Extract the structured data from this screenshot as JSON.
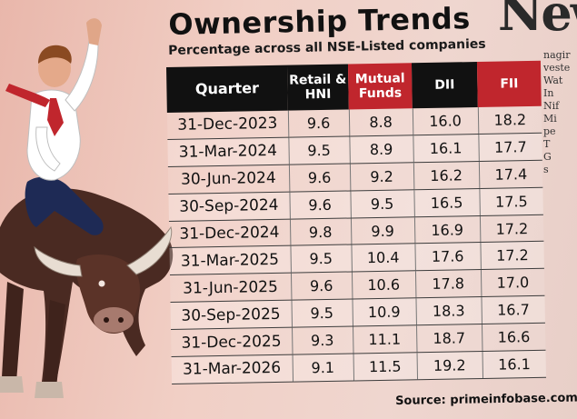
{
  "masthead": "New",
  "side_column": [
    "nagir",
    "veste",
    "Wat",
    "In",
    "Nif",
    "Mi",
    "pe",
    "T",
    "G",
    "s"
  ],
  "title": "Ownership Trends",
  "subtitle": "Percentage across all NSE-Listed companies",
  "table": {
    "headers": [
      {
        "label": "Quarter",
        "color": "#111111"
      },
      {
        "label": "Retail & HNI",
        "color": "#111111"
      },
      {
        "label": "Mutual Funds",
        "color": "#c0262d"
      },
      {
        "label": "DII",
        "color": "#111111"
      },
      {
        "label": "FII",
        "color": "#c0262d"
      }
    ],
    "rows": [
      [
        "31-Dec-2023",
        "9.6",
        "8.8",
        "16.0",
        "18.2"
      ],
      [
        "31-Mar-2024",
        "9.5",
        "8.9",
        "16.1",
        "17.7"
      ],
      [
        "30-Jun-2024",
        "9.6",
        "9.2",
        "16.2",
        "17.4"
      ],
      [
        "30-Sep-2024",
        "9.6",
        "9.5",
        "16.5",
        "17.5"
      ],
      [
        "31-Dec-2024",
        "9.8",
        "9.9",
        "16.9",
        "17.2"
      ],
      [
        "31-Mar-2025",
        "9.5",
        "10.4",
        "17.6",
        "17.2"
      ],
      [
        "31-Jun-2025",
        "9.6",
        "10.6",
        "17.8",
        "17.0"
      ],
      [
        "30-Sep-2025",
        "9.5",
        "10.9",
        "18.3",
        "16.7"
      ],
      [
        "31-Dec-2025",
        "9.3",
        "11.1",
        "18.7",
        "16.6"
      ],
      [
        "31-Mar-2026",
        "9.1",
        "11.5",
        "19.2",
        "16.1"
      ]
    ]
  },
  "source": "Source: primeinfobase.com",
  "illustration": {
    "subject": "man riding bull",
    "icon": "bull-rider-illustration"
  },
  "colors": {
    "accent_red": "#c0262d",
    "header_black": "#111111",
    "paper": "#efd6cf"
  }
}
